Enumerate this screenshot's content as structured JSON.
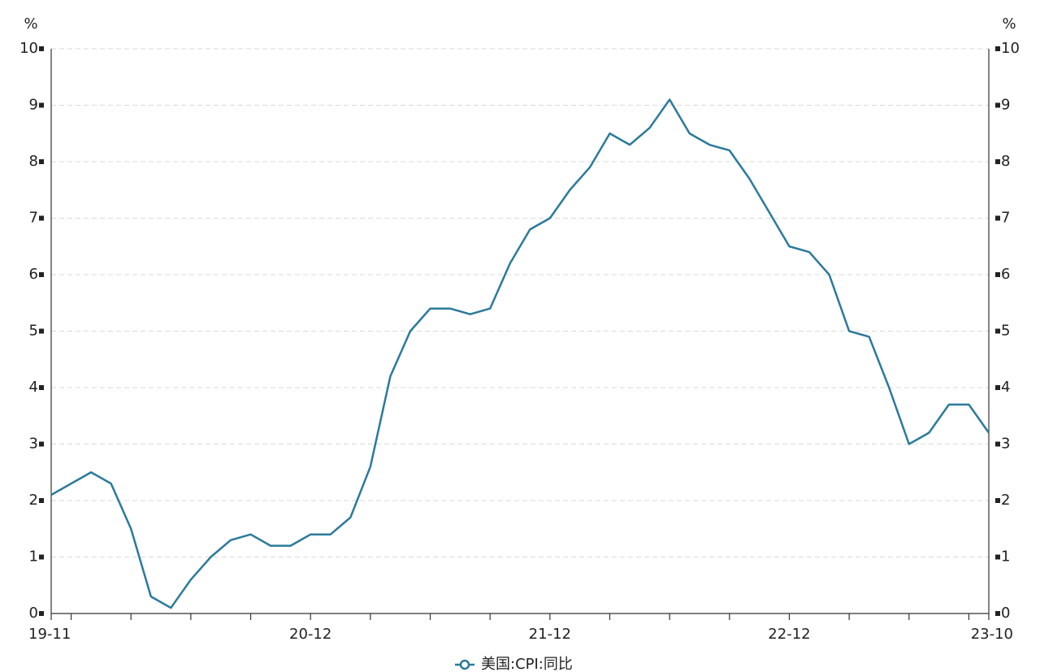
{
  "chart_data": {
    "type": "line",
    "y_label": "%",
    "y2_label": "%",
    "categories": [
      "19-11",
      null,
      null,
      null,
      null,
      null,
      null,
      null,
      null,
      null,
      null,
      null,
      null,
      "20-12",
      null,
      null,
      null,
      null,
      null,
      null,
      null,
      null,
      null,
      null,
      null,
      "21-12",
      null,
      null,
      null,
      null,
      null,
      null,
      null,
      null,
      null,
      null,
      null,
      "22-12",
      null,
      null,
      null,
      null,
      null,
      null,
      null,
      null,
      null,
      "23-10"
    ],
    "series": [
      {
        "name": "美国:CPI:同比",
        "color": "#2b7a9b",
        "values": [
          2.1,
          2.3,
          2.5,
          2.3,
          1.5,
          0.3,
          0.1,
          0.6,
          1.0,
          1.3,
          1.4,
          1.2,
          1.2,
          1.4,
          1.4,
          1.7,
          2.6,
          4.2,
          5.0,
          5.4,
          5.4,
          5.3,
          5.4,
          6.2,
          6.8,
          7.0,
          7.5,
          7.9,
          8.5,
          8.3,
          8.6,
          9.1,
          8.5,
          8.3,
          8.2,
          7.7,
          7.1,
          6.5,
          6.4,
          6.0,
          5.0,
          4.9,
          4.0,
          3.0,
          3.2,
          3.7,
          3.7,
          3.2
        ]
      }
    ],
    "ylim": [
      0,
      10
    ],
    "yticks": [
      0,
      1,
      2,
      3,
      4,
      5,
      6,
      7,
      8,
      9,
      10
    ],
    "y2lim": [
      0,
      10
    ],
    "y2ticks": [
      0,
      1,
      2,
      3,
      4,
      5,
      6,
      7,
      8,
      9,
      10
    ],
    "grid": true,
    "legend": "bottom"
  }
}
